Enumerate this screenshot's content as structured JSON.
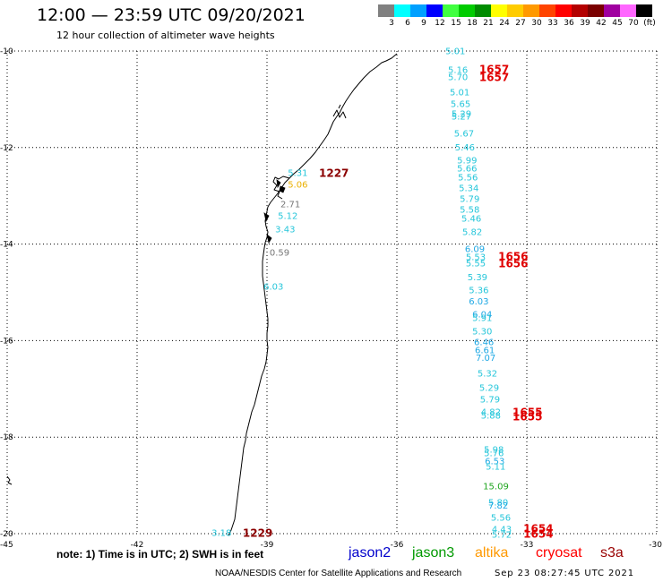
{
  "header": {
    "title": "12:00 — 23:59 UTC 09/20/2021",
    "subtitle": "12 hour collection of altimeter wave heights"
  },
  "colorbar": {
    "colors": [
      "#808080",
      "#00ffff",
      "#00a0ff",
      "#0000ff",
      "#40ff40",
      "#00cc00",
      "#008c00",
      "#ffff00",
      "#ffcc00",
      "#ff9900",
      "#ff4400",
      "#ff0000",
      "#b40000",
      "#7a0000",
      "#a000a0",
      "#ff66ff",
      "#000000"
    ],
    "labels": [
      "3",
      "6",
      "9",
      "12",
      "15",
      "18",
      "21",
      "24",
      "27",
      "30",
      "33",
      "36",
      "39",
      "42",
      "45",
      "70",
      "(ft)"
    ]
  },
  "map": {
    "lon_range": [
      -45,
      -30
    ],
    "lat_range": [
      -10,
      -20
    ],
    "lon_ticks": [
      "-45",
      "-42",
      "-39",
      "-36",
      "-33",
      "-30"
    ],
    "lat_ticks": [
      "-10",
      "-12",
      "-14",
      "-16",
      "-18",
      "-20"
    ],
    "wave_heights": [
      {
        "value": "5.01",
        "lon": -34.88,
        "lat": -10.0,
        "color": "#26c6da"
      },
      {
        "value": "5.16",
        "lon": -34.82,
        "lat": -10.39,
        "color": "#26c6da"
      },
      {
        "value": "5.70",
        "lon": -34.82,
        "lat": -10.54,
        "color": "#26c6da"
      },
      {
        "value": "5.01",
        "lon": -34.78,
        "lat": -10.85,
        "color": "#26c6da"
      },
      {
        "value": "5.65",
        "lon": -34.76,
        "lat": -11.09,
        "color": "#26c6da"
      },
      {
        "value": "5.29",
        "lon": -34.74,
        "lat": -11.3,
        "color": "#26c6da"
      },
      {
        "value": "5.27",
        "lon": -34.74,
        "lat": -11.35,
        "color": "#26c6da"
      },
      {
        "value": "5.67",
        "lon": -34.68,
        "lat": -11.71,
        "color": "#26c6da"
      },
      {
        "value": "5.46",
        "lon": -34.66,
        "lat": -11.99,
        "color": "#26c6da"
      },
      {
        "value": "5.99",
        "lon": -34.61,
        "lat": -12.26,
        "color": "#26c6da"
      },
      {
        "value": "5.66",
        "lon": -34.61,
        "lat": -12.43,
        "color": "#26c6da"
      },
      {
        "value": "5.56",
        "lon": -34.59,
        "lat": -12.62,
        "color": "#26c6da"
      },
      {
        "value": "5.34",
        "lon": -34.57,
        "lat": -12.84,
        "color": "#26c6da"
      },
      {
        "value": "5.79",
        "lon": -34.55,
        "lat": -13.06,
        "color": "#26c6da"
      },
      {
        "value": "5.58",
        "lon": -34.55,
        "lat": -13.28,
        "color": "#26c6da"
      },
      {
        "value": "5.46",
        "lon": -34.51,
        "lat": -13.47,
        "color": "#26c6da"
      },
      {
        "value": "5.82",
        "lon": -34.49,
        "lat": -13.75,
        "color": "#26c6da"
      },
      {
        "value": "6.09",
        "lon": -34.43,
        "lat": -14.1,
        "color": "#1ea8e4"
      },
      {
        "value": "5.53",
        "lon": -34.41,
        "lat": -14.27,
        "color": "#26c6da"
      },
      {
        "value": "5.55",
        "lon": -34.41,
        "lat": -14.4,
        "color": "#26c6da"
      },
      {
        "value": "5.39",
        "lon": -34.37,
        "lat": -14.68,
        "color": "#26c6da"
      },
      {
        "value": "5.36",
        "lon": -34.34,
        "lat": -14.95,
        "color": "#26c6da"
      },
      {
        "value": "6.03",
        "lon": -34.34,
        "lat": -15.19,
        "color": "#1ea8e4"
      },
      {
        "value": "6.04",
        "lon": -34.26,
        "lat": -15.45,
        "color": "#1ea8e4"
      },
      {
        "value": "5.91",
        "lon": -34.26,
        "lat": -15.53,
        "color": "#26c6da"
      },
      {
        "value": "5.30",
        "lon": -34.26,
        "lat": -15.81,
        "color": "#26c6da"
      },
      {
        "value": "6.46",
        "lon": -34.22,
        "lat": -16.03,
        "color": "#1ea8e4"
      },
      {
        "value": "6.61",
        "lon": -34.2,
        "lat": -16.2,
        "color": "#1ea8e4"
      },
      {
        "value": "7.07",
        "lon": -34.18,
        "lat": -16.35,
        "color": "#1ea8e4"
      },
      {
        "value": "5.32",
        "lon": -34.14,
        "lat": -16.68,
        "color": "#26c6da"
      },
      {
        "value": "5.29",
        "lon": -34.1,
        "lat": -16.98,
        "color": "#26c6da"
      },
      {
        "value": "5.79",
        "lon": -34.08,
        "lat": -17.22,
        "color": "#26c6da"
      },
      {
        "value": "4.82",
        "lon": -34.06,
        "lat": -17.48,
        "color": "#26c6da"
      },
      {
        "value": "5.88",
        "lon": -34.06,
        "lat": -17.55,
        "color": "#26c6da"
      },
      {
        "value": "5.98",
        "lon": -33.99,
        "lat": -18.26,
        "color": "#26c6da"
      },
      {
        "value": "5.76",
        "lon": -33.99,
        "lat": -18.33,
        "color": "#26c6da"
      },
      {
        "value": "6.53",
        "lon": -33.97,
        "lat": -18.5,
        "color": "#1ea8e4"
      },
      {
        "value": "5.11",
        "lon": -33.95,
        "lat": -18.61,
        "color": "#26c6da"
      },
      {
        "value": "15.09",
        "lon": -34.01,
        "lat": -19.02,
        "color": "#1fa51f"
      },
      {
        "value": "5.80",
        "lon": -33.89,
        "lat": -19.35,
        "color": "#26c6da"
      },
      {
        "value": "7.82",
        "lon": -33.89,
        "lat": -19.42,
        "color": "#1ea8e4"
      },
      {
        "value": "5.56",
        "lon": -33.83,
        "lat": -19.67,
        "color": "#26c6da"
      },
      {
        "value": "4.43",
        "lon": -33.81,
        "lat": -19.91,
        "color": "#26c6da"
      },
      {
        "value": "5.72",
        "lon": -33.81,
        "lat": -20.02,
        "color": "#26c6da"
      },
      {
        "value": "5.31",
        "lon": -38.52,
        "lat": -12.52,
        "color": "#26c6da"
      },
      {
        "value": "5.06",
        "lon": -38.52,
        "lat": -12.76,
        "color": "#eab000"
      },
      {
        "value": "2.71",
        "lon": -38.69,
        "lat": -13.17,
        "color": "#777777"
      },
      {
        "value": "5.12",
        "lon": -38.75,
        "lat": -13.41,
        "color": "#26c6da"
      },
      {
        "value": "3.43",
        "lon": -38.81,
        "lat": -13.69,
        "color": "#26c6da"
      },
      {
        "value": "0.59",
        "lon": -38.94,
        "lat": -14.17,
        "color": "#777777"
      },
      {
        "value": "6.03",
        "lon": -39.08,
        "lat": -14.88,
        "color": "#26c6da"
      },
      {
        "value": "3.18",
        "lon": -40.28,
        "lat": -19.98,
        "color": "#26c6da"
      }
    ],
    "pass_times": [
      {
        "value": "1657",
        "lon": -34.1,
        "lat": -10.37,
        "color": "#e00000"
      },
      {
        "value": "1657",
        "lon": -34.1,
        "lat": -10.54,
        "color": "#e00000"
      },
      {
        "value": "1656",
        "lon": -33.66,
        "lat": -14.25,
        "color": "#e00000"
      },
      {
        "value": "1656",
        "lon": -33.66,
        "lat": -14.4,
        "color": "#e00000"
      },
      {
        "value": "1655",
        "lon": -33.33,
        "lat": -17.48,
        "color": "#e00000"
      },
      {
        "value": "1655",
        "lon": -33.33,
        "lat": -17.57,
        "color": "#e00000"
      },
      {
        "value": "1654",
        "lon": -33.08,
        "lat": -19.89,
        "color": "#e00000"
      },
      {
        "value": "1654",
        "lon": -33.08,
        "lat": -20.0,
        "color": "#e00000"
      },
      {
        "value": "1227",
        "lon": -37.8,
        "lat": -12.52,
        "color": "#8b0000"
      },
      {
        "value": "1229",
        "lon": -39.56,
        "lat": -19.98,
        "color": "#8b0000"
      }
    ]
  },
  "footer": {
    "note": "note: 1) Time is in UTC; 2) SWH is in feet",
    "satellites": [
      {
        "name": "jason2",
        "color": "#0000cc"
      },
      {
        "name": "jason3",
        "color": "#009900"
      },
      {
        "name": "altika",
        "color": "#ff9900"
      },
      {
        "name": "cryosat",
        "color": "#ff0000"
      },
      {
        "name": "s3a",
        "color": "#990000"
      }
    ],
    "credit": "NOAA/NESDIS Center for Satellite Applications and Research",
    "timestamp": "Sep 23 08:27:45 UTC 2021"
  }
}
